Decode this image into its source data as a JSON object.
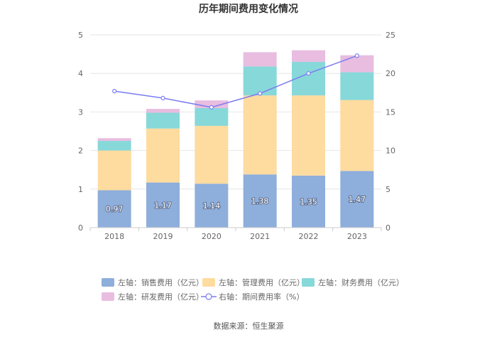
{
  "chart_data": {
    "type": "bar",
    "title": "历年期间费用变化情况",
    "categories": [
      "2018",
      "2019",
      "2020",
      "2021",
      "2022",
      "2023"
    ],
    "left_axis": {
      "ylim": [
        0,
        5
      ],
      "ticks": [
        "0",
        "1",
        "2",
        "3",
        "4",
        "5"
      ]
    },
    "right_axis": {
      "ylim": [
        0,
        25
      ],
      "ticks": [
        "0",
        "5",
        "10",
        "15",
        "20",
        "25"
      ]
    },
    "grid": true,
    "series": [
      {
        "name": "左轴：销售费用（亿元）",
        "type": "bar",
        "axis": "left",
        "color": "#8eaedb",
        "values": [
          0.97,
          1.17,
          1.14,
          1.38,
          1.35,
          1.47
        ],
        "labels": [
          "0.97",
          "1.17",
          "1.14",
          "1.38",
          "1.35",
          "1.47"
        ]
      },
      {
        "name": "左轴：管理费用（亿元）",
        "type": "bar",
        "axis": "left",
        "color": "#fedb9f",
        "values": [
          1.03,
          1.4,
          1.5,
          2.05,
          2.08,
          1.84
        ]
      },
      {
        "name": "左轴：财务费用（亿元）",
        "type": "bar",
        "axis": "left",
        "color": "#87d8d9",
        "values": [
          0.25,
          0.41,
          0.46,
          0.75,
          0.87,
          0.72
        ]
      },
      {
        "name": "左轴：研发费用（亿元）",
        "type": "bar",
        "axis": "left",
        "color": "#e8bde0",
        "values": [
          0.07,
          0.1,
          0.2,
          0.37,
          0.3,
          0.44
        ]
      },
      {
        "name": "右轴：期间费用率（%）",
        "type": "line",
        "axis": "right",
        "color": "#7b7cf0",
        "values": [
          17.7,
          16.8,
          15.6,
          17.4,
          20.0,
          22.3
        ]
      }
    ],
    "legend_position": "bottom"
  },
  "source": "数据来源：恒生聚源"
}
